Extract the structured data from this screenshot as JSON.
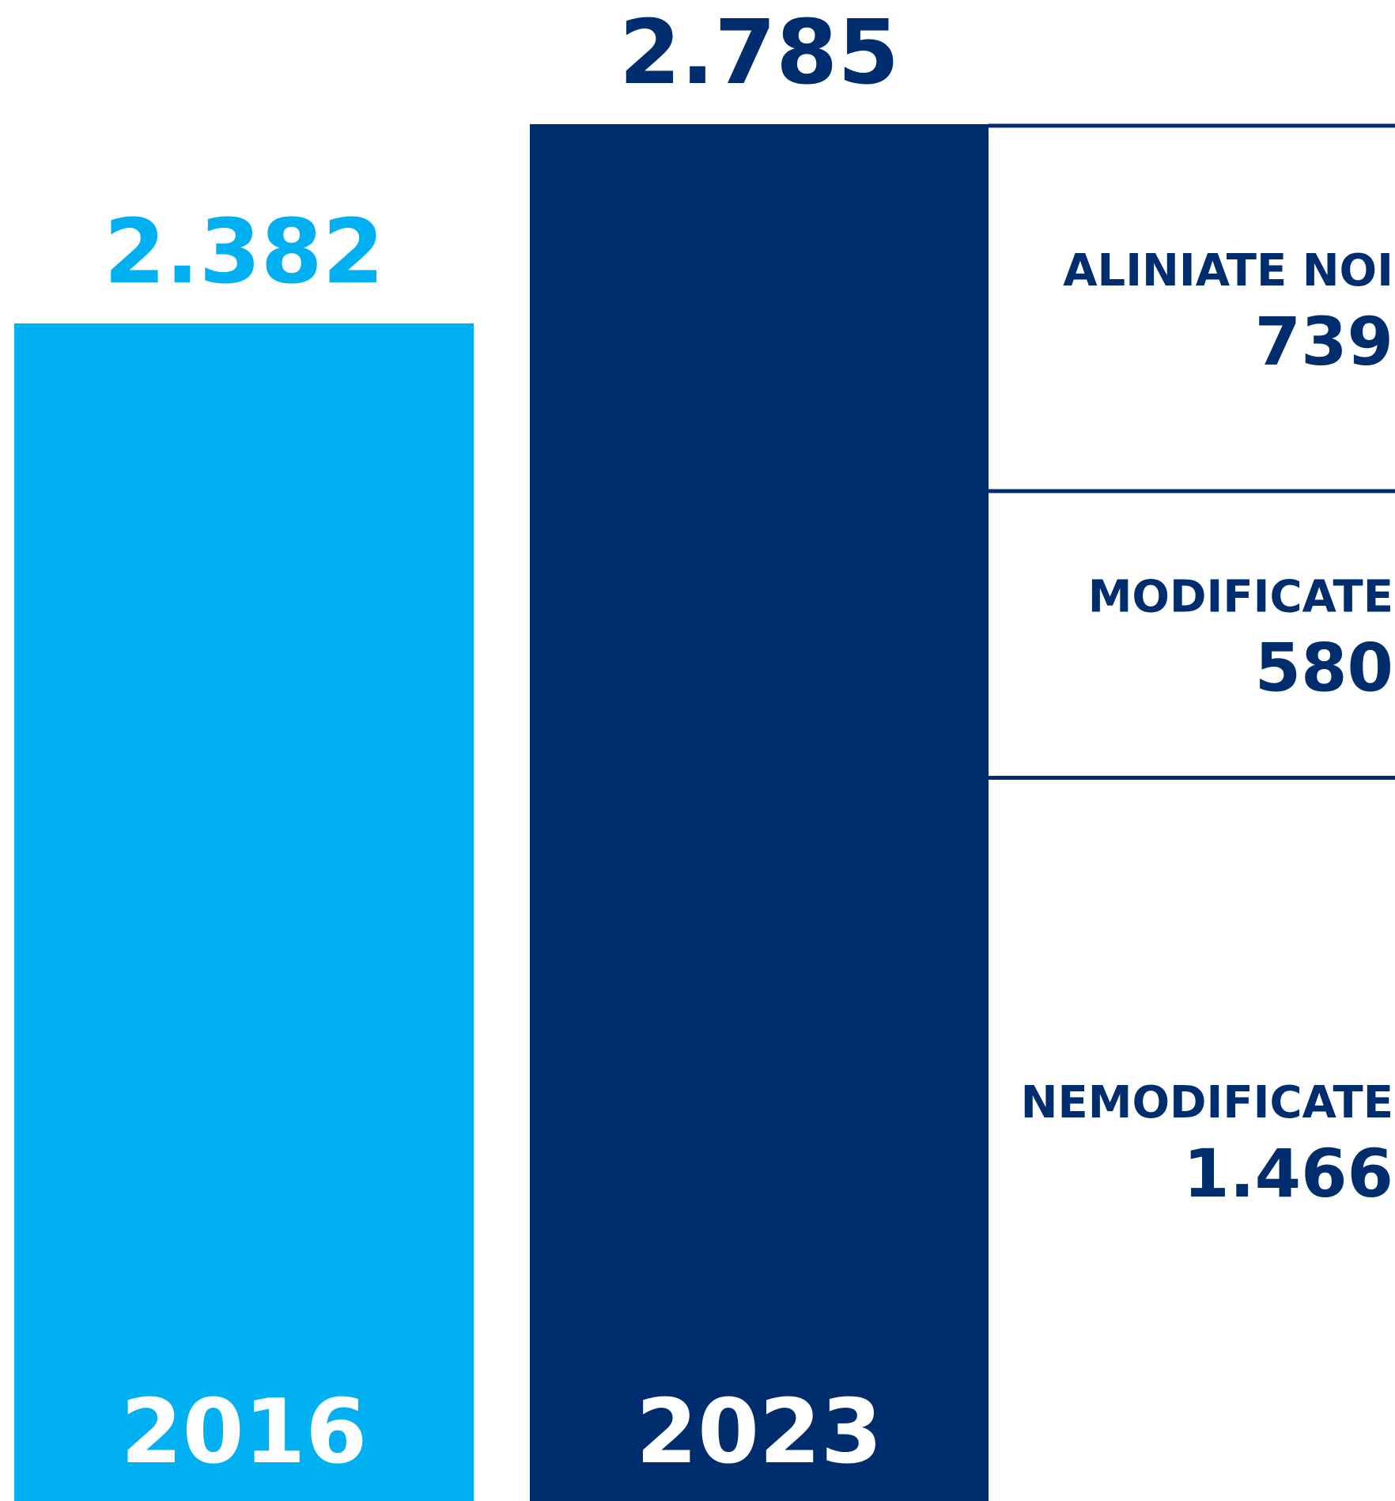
{
  "chart_data": {
    "type": "bar",
    "categories": [
      "2016",
      "2023"
    ],
    "values": [
      2382,
      2785
    ],
    "value_labels": [
      "2.382",
      "2.785"
    ],
    "colors": [
      "#00b0f0",
      "#002d6e"
    ],
    "breakdown": {
      "of": "2023",
      "categories": [
        "ALINIATE NOI",
        "MODIFICATE",
        "NEMODIFICATE"
      ],
      "values": [
        739,
        580,
        1466
      ],
      "value_labels": [
        "739",
        "580",
        "1.466"
      ],
      "color": "#002d6e"
    }
  }
}
